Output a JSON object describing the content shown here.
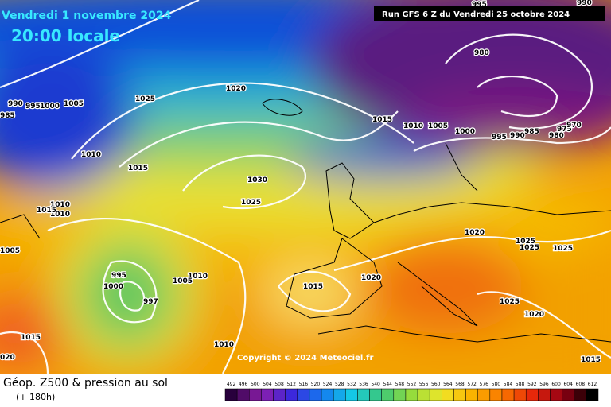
{
  "header": {
    "date": "Vendredi 1 novembre 2024",
    "time": "20:00 locale",
    "run": "Run GFS 6 Z du Vendredi 25 octobre 2024"
  },
  "copyright": "Copyright © 2024 Meteociel.fr",
  "footer": {
    "title": "Géop. Z500 & pression au sol",
    "lead": "(+ 180h)"
  },
  "colorbar": {
    "labels": [
      "492",
      "496",
      "500",
      "504",
      "508",
      "512",
      "516",
      "520",
      "524",
      "528",
      "532",
      "536",
      "540",
      "544",
      "548",
      "552",
      "556",
      "560",
      "564",
      "568",
      "572",
      "576",
      "580",
      "584",
      "588",
      "592",
      "596",
      "600",
      "604",
      "608",
      "612"
    ]
  },
  "isobar_labels": [
    "990",
    "995",
    "980",
    "990",
    "995",
    "1000",
    "1005",
    "985",
    "1025",
    "1020",
    "1015",
    "1010",
    "1005",
    "1000",
    "995",
    "990",
    "985",
    "980",
    "975",
    "970",
    "1010",
    "1015",
    "1030",
    "1025",
    "1010",
    "1010",
    "1015",
    "1020",
    "1025",
    "1025",
    "1025",
    "1005",
    "995",
    "1000",
    "997",
    "1010",
    "1005",
    "1015",
    "1020",
    "1025",
    "1020",
    "1015",
    "1010",
    "020",
    "1015"
  ]
}
